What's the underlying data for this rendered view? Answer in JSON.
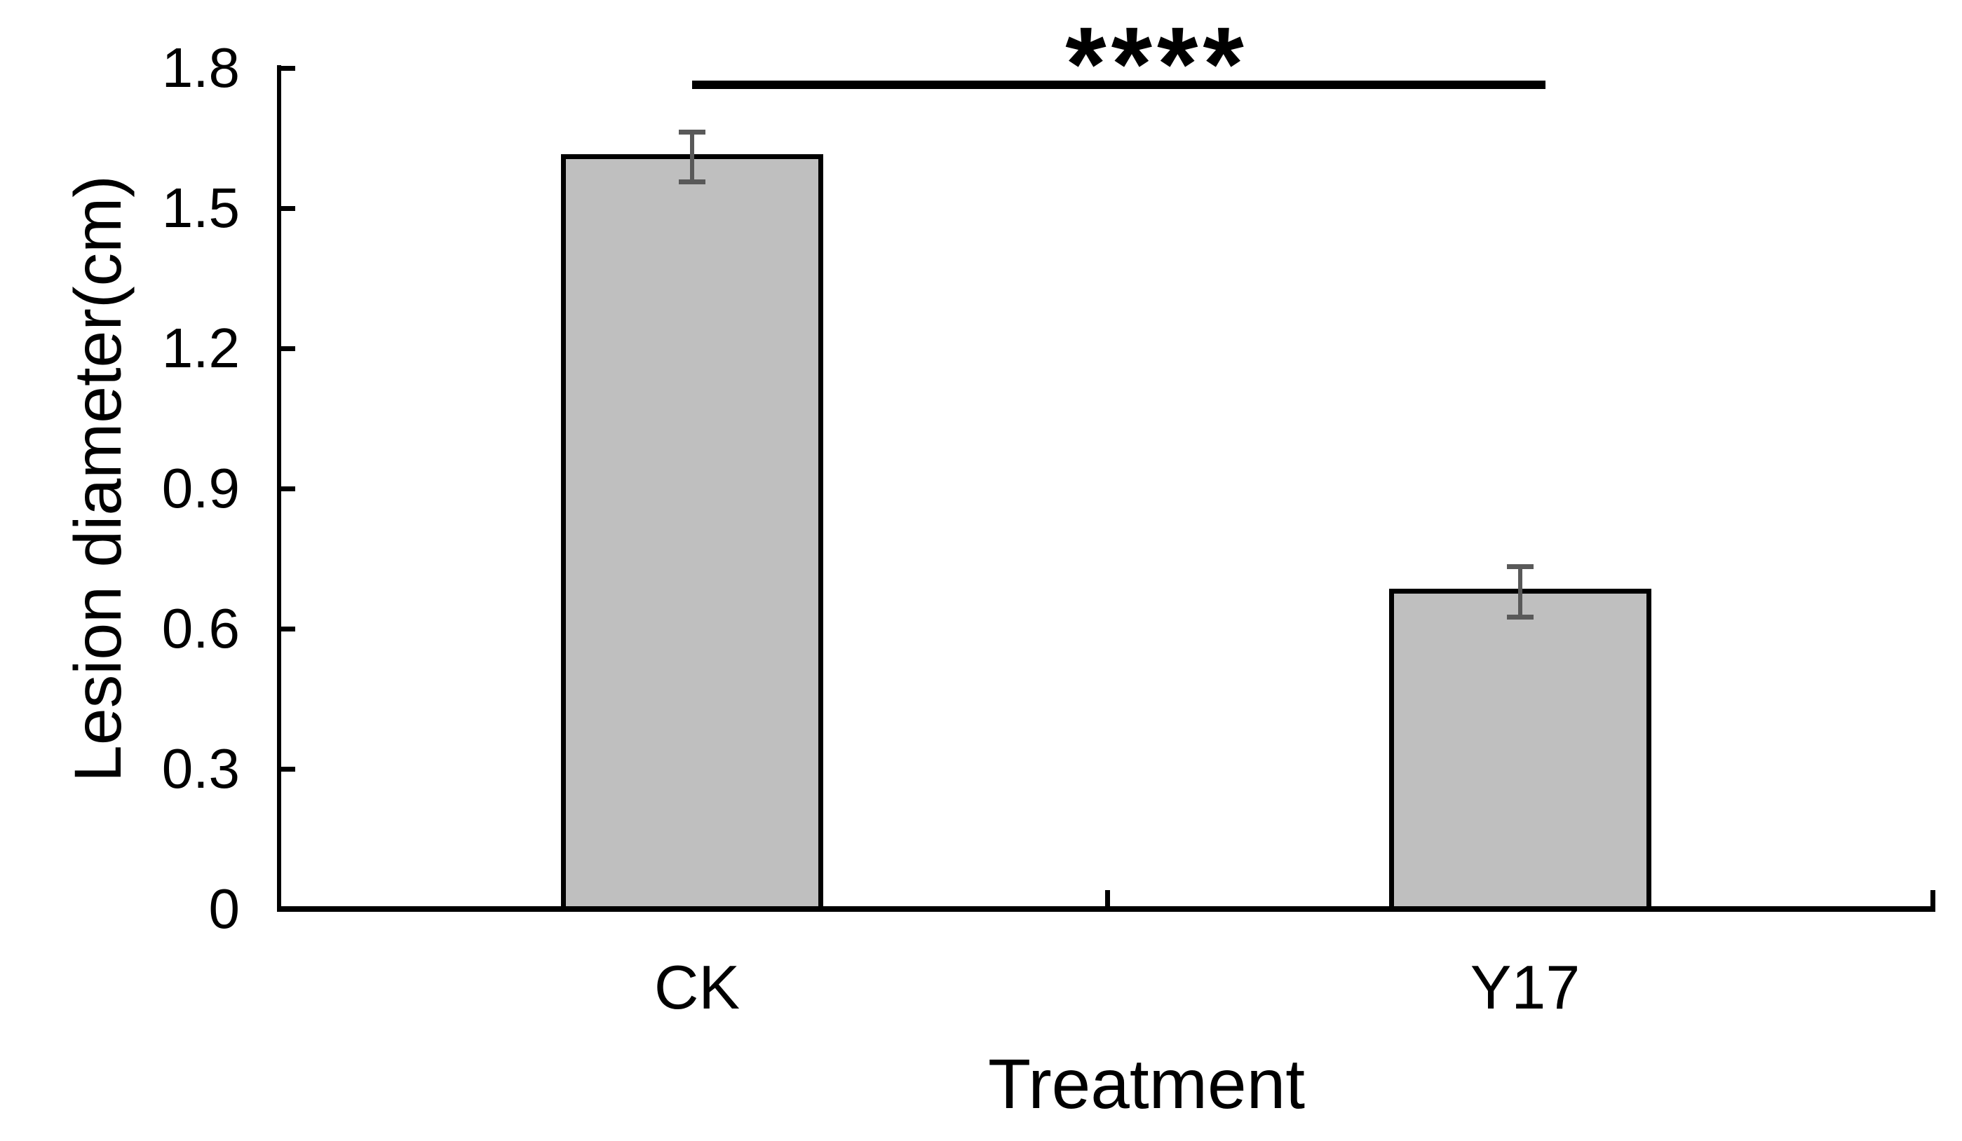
{
  "chart_data": {
    "type": "bar",
    "title": "",
    "categories": [
      "CK",
      "Y17"
    ],
    "values": [
      1.61,
      0.68
    ],
    "errors": [
      0.053,
      0.054
    ],
    "xlabel": "Treatment",
    "ylabel": "Lesion diameter(cm)",
    "ylim": [
      0,
      1.8
    ],
    "ytick_step": 0.3,
    "yticks": [
      0,
      0.3,
      0.6,
      0.9,
      1.2,
      1.5,
      1.8
    ],
    "ytick_labels": [
      "0",
      "0.3",
      "0.6",
      "0.9",
      "1.2",
      "1.5",
      "1.8"
    ],
    "grid": false,
    "legend": null,
    "bar_fill_color": "#bfbfbf",
    "bar_border_color": "#000000",
    "error_bar_color": "#595959",
    "axis_color": "#000000",
    "significance": {
      "label": "****",
      "between": [
        "CK",
        "Y17"
      ]
    }
  }
}
